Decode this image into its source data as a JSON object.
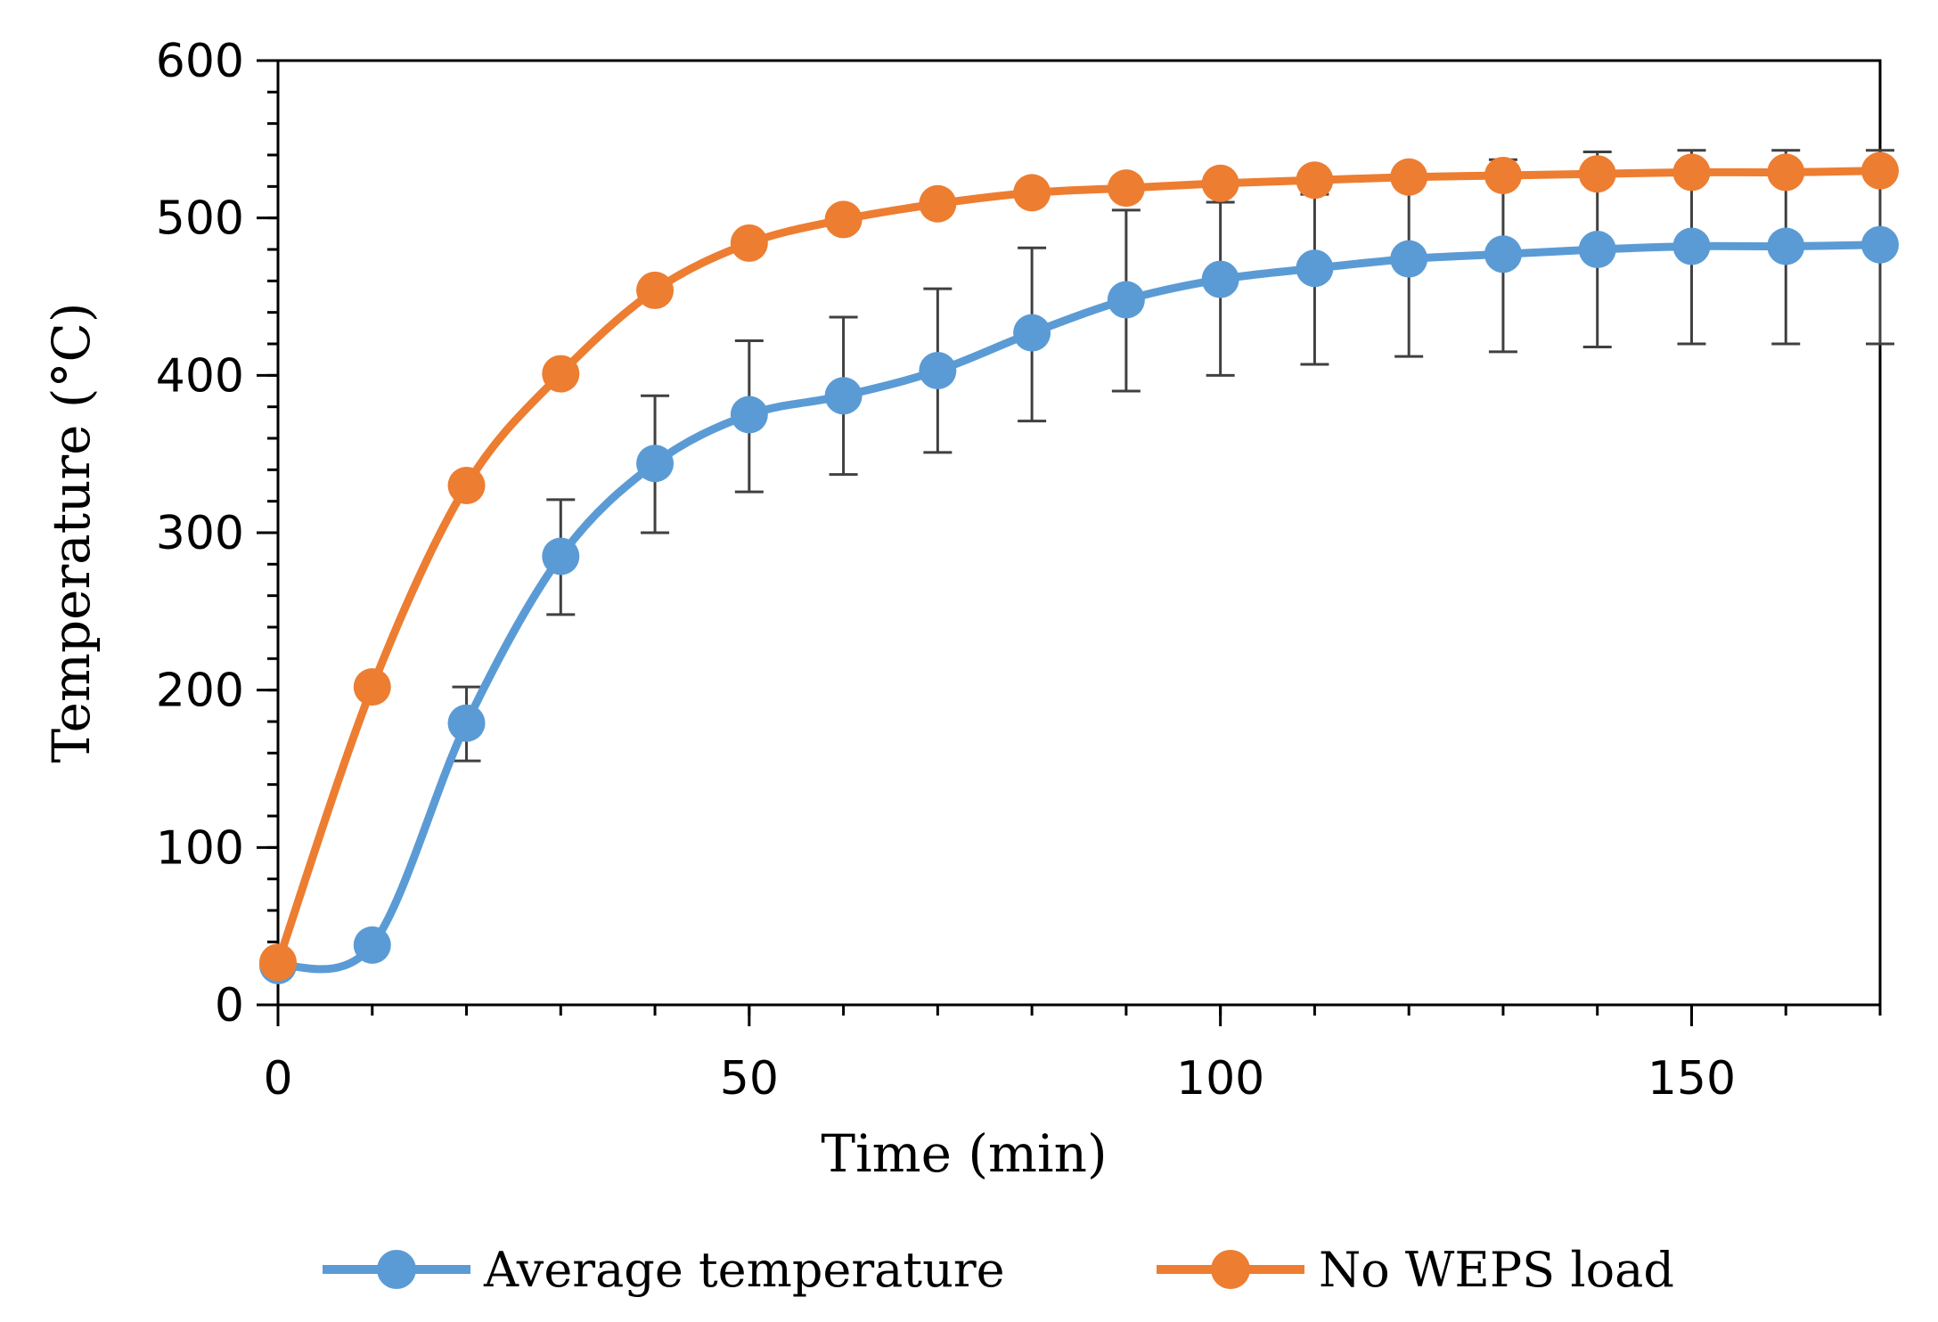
{
  "chart_data": {
    "type": "line",
    "title": "",
    "xlabel": "Time (min)",
    "ylabel": "Temperature (°C)",
    "xlim": [
      0,
      170
    ],
    "ylim": [
      0,
      600
    ],
    "x_ticks": [
      0,
      50,
      100,
      150
    ],
    "y_ticks": [
      0,
      100,
      200,
      300,
      400,
      500,
      600
    ],
    "x_tick_labels": [
      "0",
      "50",
      "100",
      "150"
    ],
    "y_tick_labels": [
      "0",
      "100",
      "200",
      "300",
      "400",
      "500",
      "600"
    ],
    "grid": false,
    "legend_position": "bottom",
    "x": [
      0,
      10,
      20,
      30,
      40,
      50,
      60,
      70,
      80,
      90,
      100,
      110,
      120,
      130,
      140,
      150,
      160,
      170
    ],
    "series": [
      {
        "name": "Average temperature",
        "color": "#5B9BD5",
        "values": [
          25,
          38,
          179,
          285,
          344,
          375,
          387,
          403,
          427,
          448,
          461,
          468,
          474,
          477,
          480,
          482,
          482,
          483
        ],
        "error_low": [
          null,
          null,
          155,
          248,
          300,
          326,
          337,
          351,
          371,
          390,
          400,
          407,
          412,
          415,
          418,
          420,
          420,
          420
        ],
        "error_high": [
          null,
          null,
          202,
          321,
          387,
          422,
          437,
          455,
          481,
          505,
          510,
          515,
          525,
          537,
          542,
          543,
          543,
          543
        ]
      },
      {
        "name": "No WEPS load",
        "color": "#ED7D31",
        "values": [
          27,
          202,
          330,
          401,
          454,
          484,
          499,
          509,
          516,
          519,
          522,
          524,
          526,
          527,
          528,
          529,
          529,
          530
        ]
      }
    ],
    "error_bar_color": "#404040"
  }
}
